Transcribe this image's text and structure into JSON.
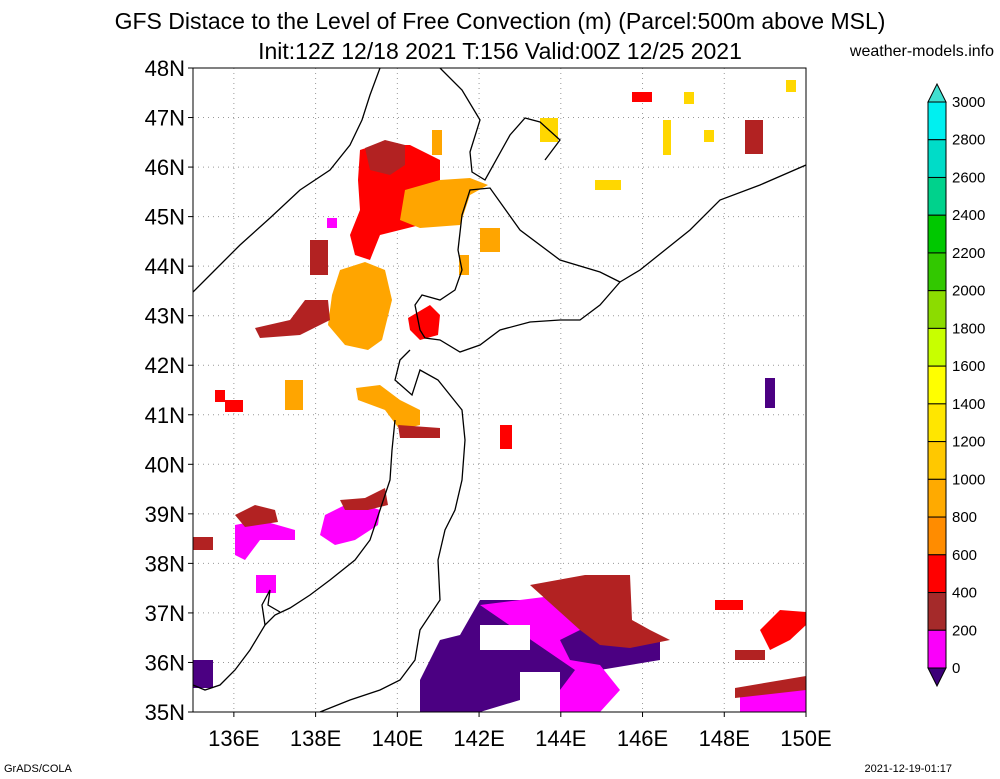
{
  "title": {
    "line1": "GFS Distace to the Level of Free Convection (m) (Parcel:500m above MSL)",
    "line2": "Init:12Z 12/18 2021 T:156 Valid:00Z 12/25 2021"
  },
  "site": "weather-models.info",
  "footer": {
    "left": "GrADS/COLA",
    "right": "2021-12-19-01:17"
  },
  "map": {
    "lat_labels": [
      "35N",
      "36N",
      "37N",
      "38N",
      "39N",
      "40N",
      "41N",
      "42N",
      "43N",
      "44N",
      "45N",
      "46N",
      "47N",
      "48N"
    ],
    "lon_labels": [
      "136E",
      "138E",
      "140E",
      "142E",
      "144E",
      "146E",
      "148E",
      "150E"
    ],
    "lat_range": [
      35,
      48
    ],
    "lon_range": [
      135,
      150
    ]
  },
  "colorbar": {
    "labels": [
      "0",
      "200",
      "400",
      "600",
      "800",
      "1000",
      "1200",
      "1400",
      "1600",
      "1800",
      "2000",
      "2200",
      "2400",
      "2600",
      "2800",
      "3000"
    ],
    "colors": [
      "#5a0096",
      "#fa00fa",
      "#a52a2a",
      "#ff0000",
      "#ff8c00",
      "#ffaa00",
      "#ffc800",
      "#ffe600",
      "#ffff00",
      "#c8ff00",
      "#8cdc00",
      "#32c800",
      "#00c800",
      "#00d28c",
      "#00dcc8",
      "#00f0f0"
    ],
    "under_color": "#3c0078",
    "over_color": "#40e0d0"
  },
  "colors": {
    "dark_purple": "#4b0082",
    "magenta": "#ff00ff",
    "brown": "#b22222",
    "red": "#ff0000",
    "dark_orange": "#ff9900",
    "orange": "#ffb000",
    "gold": "#ffd700",
    "yellow": "#ffff00"
  }
}
